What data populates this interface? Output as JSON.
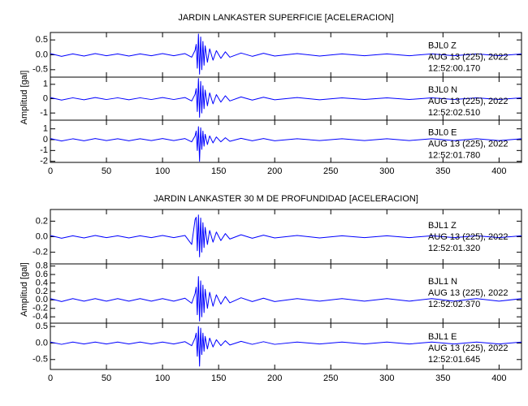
{
  "chart_data": [
    {
      "type": "line",
      "title": "JARDIN LANKASTER SUPERFICIE [ACELERACION]",
      "y_label": "Amplitud [gal]",
      "color": "#0000ff",
      "xlim": [
        0,
        420
      ],
      "xticks": [
        0,
        50,
        100,
        150,
        200,
        250,
        300,
        350,
        400
      ],
      "x": [
        0,
        10,
        20,
        30,
        40,
        50,
        60,
        70,
        80,
        90,
        100,
        110,
        120,
        126,
        129,
        130,
        131,
        132,
        133,
        134,
        135,
        136,
        137,
        138,
        140,
        142,
        145,
        148,
        152,
        156,
        160,
        170,
        180,
        190,
        200,
        220,
        240,
        260,
        280,
        300,
        320,
        340,
        360,
        380,
        400,
        420
      ],
      "panels": [
        {
          "station": "BJL0   Z",
          "date": "AUG 13 (225), 2022",
          "time": "12:52:00.170",
          "ylim": [
            -0.75,
            0.75
          ],
          "yticks": [
            0.5,
            {
              "value": 0,
              "label": "0.0"
            },
            -0.5
          ],
          "values": [
            0.04,
            -0.05,
            0.03,
            -0.04,
            0.04,
            -0.03,
            0.03,
            -0.04,
            0.03,
            -0.03,
            0.04,
            -0.03,
            0.04,
            -0.08,
            0.15,
            0.35,
            -0.45,
            0.7,
            -0.65,
            0.6,
            -0.5,
            0.45,
            -0.35,
            0.3,
            -0.25,
            0.2,
            -0.18,
            0.14,
            -0.12,
            0.1,
            -0.08,
            0.06,
            -0.05,
            0.05,
            -0.04,
            0.04,
            -0.04,
            0.03,
            -0.03,
            0.03,
            -0.03,
            0.03,
            -0.03,
            0.03,
            -0.03,
            0.03
          ]
        },
        {
          "station": "BJL0   N",
          "date": "AUG 13 (225), 2022",
          "time": "12:52:02.510",
          "ylim": [
            -1.5,
            1.5
          ],
          "yticks": [
            1,
            0,
            -1
          ],
          "values": [
            0.08,
            -0.1,
            0.06,
            -0.08,
            0.08,
            -0.06,
            0.06,
            -0.08,
            0.06,
            -0.06,
            0.08,
            -0.06,
            0.08,
            -0.16,
            0.3,
            0.7,
            -0.9,
            1.4,
            -1.3,
            1.2,
            -1,
            0.9,
            -0.7,
            0.6,
            -0.5,
            0.4,
            -0.36,
            0.28,
            -0.24,
            0.2,
            -0.16,
            0.12,
            -0.1,
            0.1,
            -0.08,
            0.08,
            -0.08,
            0.06,
            -0.06,
            0.06,
            -0.06,
            0.06,
            -0.06,
            0.06,
            -0.06,
            0.06
          ]
        },
        {
          "station": "BJL0   E",
          "date": "AUG 13 (225), 2022",
          "time": "12:52:01.780",
          "ylim": [
            -2.1,
            1.8
          ],
          "yticks": [
            1,
            0,
            -1,
            -2
          ],
          "values": [
            0.1,
            -0.12,
            0.08,
            -0.1,
            0.1,
            -0.08,
            0.08,
            -0.1,
            0.08,
            -0.08,
            0.1,
            -0.08,
            0.1,
            -0.2,
            0.35,
            0.8,
            -1,
            1.2,
            -2,
            1.1,
            -0.9,
            0.8,
            -0.6,
            0.5,
            -0.45,
            0.35,
            -0.3,
            0.25,
            -0.2,
            0.18,
            -0.15,
            0.12,
            -0.1,
            0.1,
            -0.1,
            0.08,
            -0.08,
            0.08,
            -0.08,
            0.08,
            -0.08,
            0.08,
            -0.08,
            0.08,
            -0.08,
            0.08
          ]
        }
      ]
    },
    {
      "type": "line",
      "title": "JARDIN LANKASTER 30 M DE PROFUNDIDAD [ACELERACION]",
      "y_label": "Amplitud [gal]",
      "color": "#0000ff",
      "xlim": [
        0,
        420
      ],
      "xticks": [
        0,
        50,
        100,
        150,
        200,
        250,
        300,
        350,
        400
      ],
      "x": [
        0,
        10,
        20,
        30,
        40,
        50,
        60,
        70,
        80,
        90,
        100,
        110,
        120,
        126,
        129,
        130,
        131,
        132,
        133,
        134,
        135,
        136,
        137,
        138,
        140,
        142,
        145,
        148,
        152,
        156,
        160,
        170,
        180,
        190,
        200,
        220,
        240,
        260,
        280,
        300,
        320,
        340,
        360,
        380,
        400,
        420
      ],
      "panels": [
        {
          "station": "BJL1   Z",
          "date": "AUG 13 (225), 2022",
          "time": "12:52:01.320",
          "ylim": [
            -0.35,
            0.35
          ],
          "yticks": [
            0.2,
            {
              "value": 0,
              "label": "0.0"
            },
            -0.2
          ],
          "values": [
            0.016,
            -0.02,
            0.012,
            -0.016,
            0.016,
            -0.012,
            0.012,
            -0.016,
            0.012,
            -0.012,
            0.016,
            -0.012,
            0.016,
            -0.1,
            0.22,
            0.25,
            -0.18,
            0.28,
            -0.26,
            0.24,
            -0.2,
            0.18,
            -0.14,
            0.12,
            -0.1,
            0.08,
            -0.07,
            0.06,
            -0.05,
            0.04,
            -0.03,
            0.025,
            -0.02,
            0.02,
            -0.016,
            0.016,
            -0.016,
            0.012,
            -0.012,
            0.012,
            -0.012,
            0.012,
            -0.012,
            0.012,
            -0.012,
            0.012
          ]
        },
        {
          "station": "BJL1   N",
          "date": "AUG 13 (225), 2022",
          "time": "12:52:02.370",
          "ylim": [
            -0.55,
            0.85
          ],
          "yticks": [
            0.8,
            0.6,
            0.4,
            0.2,
            {
              "value": 0,
              "label": "0.0"
            },
            -0.2,
            -0.4
          ],
          "values": [
            0.03,
            -0.04,
            0.03,
            -0.03,
            0.03,
            -0.03,
            0.03,
            -0.03,
            0.03,
            -0.03,
            0.03,
            -0.03,
            0.04,
            -0.08,
            0.15,
            0.3,
            -0.35,
            0.55,
            -0.5,
            0.45,
            -0.4,
            0.35,
            -0.3,
            0.25,
            -0.2,
            0.18,
            -0.15,
            0.12,
            -0.1,
            0.08,
            -0.07,
            0.05,
            -0.04,
            0.04,
            -0.04,
            0.03,
            -0.03,
            0.03,
            -0.03,
            0.03,
            -0.03,
            0.03,
            -0.03,
            0.03,
            -0.03,
            0.03
          ]
        },
        {
          "station": "BJL1   E",
          "date": "AUG 13 (225), 2022",
          "time": "12:52:01.645",
          "ylim": [
            -0.8,
            0.6
          ],
          "yticks": [
            0.5,
            {
              "value": 0,
              "label": "0.0"
            },
            -0.5
          ],
          "values": [
            0.03,
            -0.04,
            0.03,
            -0.03,
            0.03,
            -0.03,
            0.03,
            -0.03,
            0.03,
            -0.03,
            0.03,
            -0.03,
            0.04,
            -0.08,
            0.15,
            0.3,
            -0.4,
            0.5,
            -0.7,
            0.45,
            -0.35,
            0.3,
            -0.25,
            0.2,
            -0.18,
            0.15,
            -0.12,
            0.1,
            -0.08,
            0.07,
            -0.06,
            0.05,
            -0.04,
            0.04,
            -0.04,
            0.03,
            -0.03,
            0.03,
            -0.03,
            0.03,
            -0.03,
            0.03,
            -0.03,
            0.03,
            -0.03,
            0.03
          ]
        }
      ]
    }
  ]
}
